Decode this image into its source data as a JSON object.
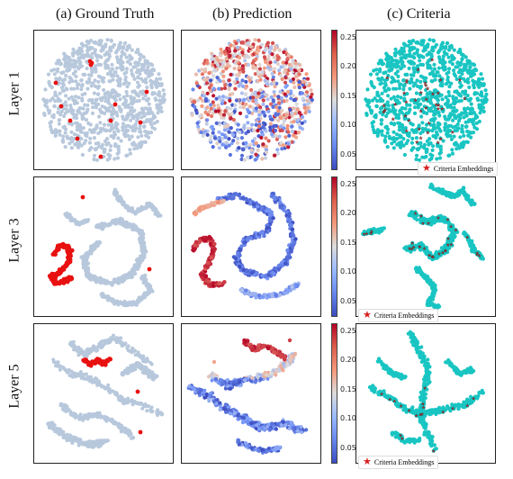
{
  "columns": {
    "a": "(a) Ground Truth",
    "b": "(b) Prediction",
    "c": "(c) Criteria"
  },
  "rows": [
    "Layer 1",
    "Layer 3",
    "Layer 5"
  ],
  "colorbar": {
    "ticks": [
      "0.25",
      "0.20",
      "0.15",
      "0.10",
      "0.05"
    ]
  },
  "legend_label": "Criteria Embeddings",
  "colors": {
    "gray": "#b8c8dc",
    "red": "#e81010",
    "cyan": "#19c5c2",
    "star": "#d61f1f"
  },
  "chart_data": {
    "type": "scatter",
    "colorbar_range": [
      0.03,
      0.26
    ],
    "panels": [
      {
        "row": "Layer 1",
        "column": "(a) Ground Truth"
      },
      {
        "row": "Layer 1",
        "column": "(b) Prediction"
      },
      {
        "row": "Layer 1",
        "column": "(c) Criteria"
      },
      {
        "row": "Layer 3",
        "column": "(a) Ground Truth"
      },
      {
        "row": "Layer 3",
        "column": "(b) Prediction"
      },
      {
        "row": "Layer 3",
        "column": "(c) Criteria"
      },
      {
        "row": "Layer 5",
        "column": "(a) Ground Truth"
      },
      {
        "row": "Layer 5",
        "column": "(b) Prediction"
      },
      {
        "row": "Layer 5",
        "column": "(c) Criteria"
      }
    ]
  }
}
